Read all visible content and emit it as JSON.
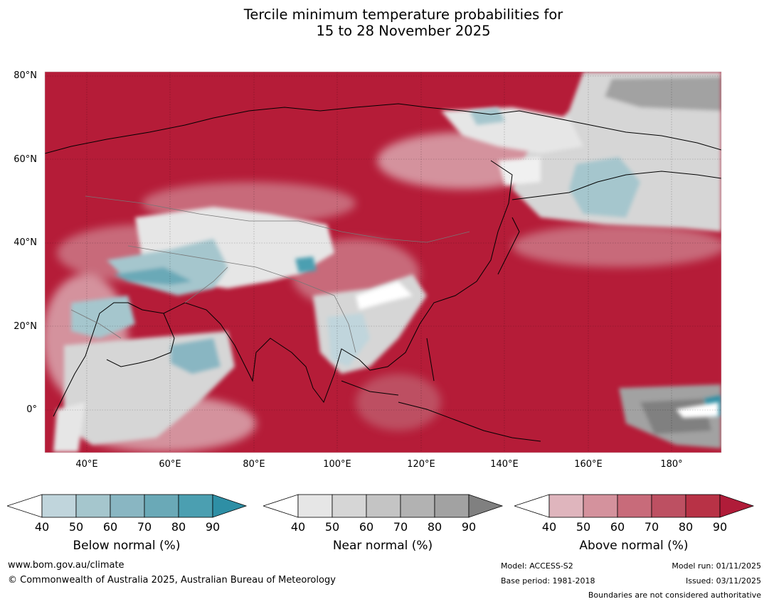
{
  "title": {
    "line1": "Tercile minimum temperature probabilities for",
    "line2": "15 to 28 November 2025"
  },
  "map": {
    "lat_labels": [
      "80°N",
      "60°N",
      "40°N",
      "20°N",
      "0°"
    ],
    "lon_labels": [
      "40°E",
      "60°E",
      "80°E",
      "100°E",
      "120°E",
      "140°E",
      "160°E",
      "180°"
    ],
    "lat_range": [
      -10,
      81
    ],
    "lon_range": [
      30,
      192
    ]
  },
  "legend": {
    "below": {
      "title": "Below normal (%)",
      "ticks": [
        "40",
        "50",
        "60",
        "70",
        "80",
        "90"
      ],
      "colors": [
        "#ffffff",
        "#c0d5dc",
        "#a5c6cd",
        "#89b6c2",
        "#6aa9b7",
        "#4b9fb1",
        "#2e8fa5"
      ]
    },
    "near": {
      "title": "Near normal (%)",
      "ticks": [
        "40",
        "50",
        "60",
        "70",
        "80",
        "90"
      ],
      "colors": [
        "#ffffff",
        "#e6e6e6",
        "#d6d6d6",
        "#c4c4c4",
        "#b2b2b2",
        "#a2a2a2",
        "#808080"
      ]
    },
    "above": {
      "title": "Above normal (%)",
      "ticks": [
        "40",
        "50",
        "60",
        "70",
        "80",
        "90"
      ],
      "colors": [
        "#ffffff",
        "#dfb5bd",
        "#d4929d",
        "#c86b7a",
        "#bd5062",
        "#b83246",
        "#b01c39"
      ]
    }
  },
  "footer": {
    "website": "www.bom.gov.au/climate",
    "copyright": "© Commonwealth of Australia 2025, Australian Bureau of Meteorology",
    "model": "Model: ACCESS-S2",
    "base_period": "Base period: 1981-2018",
    "model_run": "Model run: 01/11/2025",
    "issued": "Issued: 03/11/2025",
    "boundaries": "Boundaries are not considered authoritative"
  }
}
